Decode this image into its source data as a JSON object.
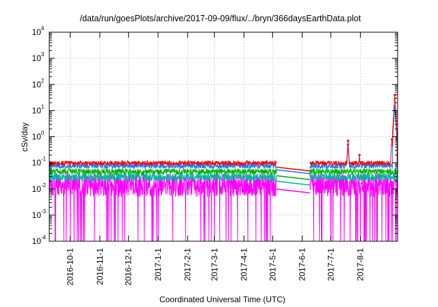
{
  "chart_data": {
    "type": "line",
    "title": "/data/run/goesPlots/archive/2017-09-09/flux/../bryn/366daysEarthData.plot",
    "xlabel": "Coordinated Universal Time (UTC)",
    "ylabel": "cSv/day",
    "yscale": "log",
    "ylim_exp": [
      -4,
      4
    ],
    "y_tick_base": "10",
    "y_tick_exponents": [
      "-4",
      "-3",
      "-2",
      "-1",
      "0",
      "1",
      "2",
      "3",
      "4"
    ],
    "x_start": "2016-09-09",
    "x_end": "2017-09-09",
    "x_ticks": [
      {
        "date": "2016-10-01",
        "label": "2016-10-1"
      },
      {
        "date": "2016-11-01",
        "label": "2016-11-1"
      },
      {
        "date": "2016-12-01",
        "label": "2016-12-1"
      },
      {
        "date": "2017-01-01",
        "label": "2017-1-1"
      },
      {
        "date": "2017-02-01",
        "label": "2017-2-1"
      },
      {
        "date": "2017-03-01",
        "label": "2017-3-1"
      },
      {
        "date": "2017-04-01",
        "label": "2017-4-1"
      },
      {
        "date": "2017-05-01",
        "label": "2017-5-1"
      },
      {
        "date": "2017-06-01",
        "label": "2017-6-1"
      },
      {
        "date": "2017-07-01",
        "label": "2017-7-1"
      },
      {
        "date": "2017-08-01",
        "label": "2017-8-1"
      }
    ],
    "grid": true,
    "legend": "none",
    "gap": {
      "start": "2017-05-05",
      "end": "2017-06-09"
    },
    "series": [
      {
        "color": "#ff0000",
        "typical_range": [
          0.08,
          0.12
        ],
        "points": [
          {
            "date": "2017-07-19",
            "value": 0.7
          },
          {
            "date": "2017-07-31",
            "value": 0.2
          },
          {
            "date": "2017-09-03",
            "value": 0.8
          },
          {
            "date": "2017-09-06",
            "value": 40
          }
        ]
      },
      {
        "color": "#1e78ff",
        "typical_range": [
          0.06,
          0.1
        ],
        "points": [
          {
            "date": "2017-07-19",
            "value": 0.5
          },
          {
            "date": "2017-09-06",
            "value": 15
          }
        ]
      },
      {
        "color": "#00b400",
        "typical_range": [
          0.035,
          0.06
        ],
        "points": []
      },
      {
        "color": "#00b4a0",
        "typical_range": [
          0.02,
          0.04
        ],
        "points": []
      },
      {
        "color": "#ff00ff",
        "typical_range": [
          0.005,
          0.04
        ],
        "dropout_min": 0.0001,
        "points": []
      }
    ]
  }
}
